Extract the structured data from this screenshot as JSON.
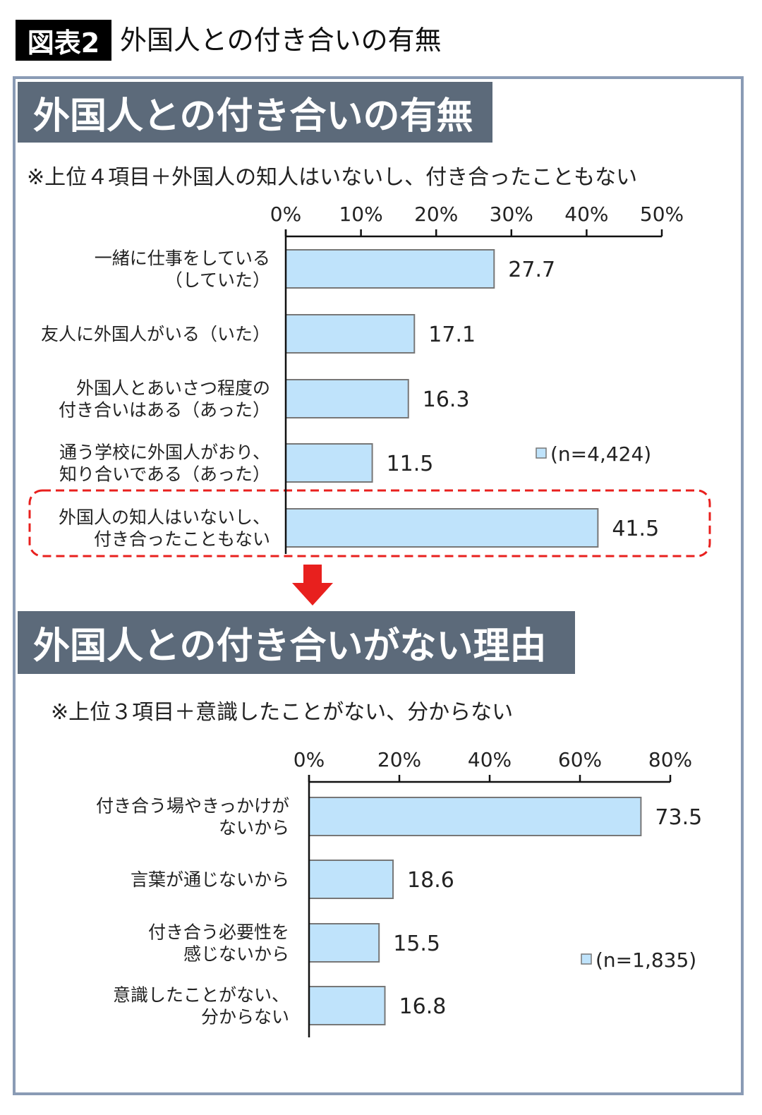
{
  "header": {
    "figure_label": "図表2",
    "title": "外国人との付き合いの有無"
  },
  "colors": {
    "bar_fill": "#bfe3fb",
    "bar_stroke": "#777777",
    "banner": "#5c6a7a",
    "frame": "#8a9bb5",
    "highlight": "#e8201e"
  },
  "chart_data": [
    {
      "type": "bar",
      "orientation": "horizontal",
      "title": "外国人との付き合いの有無",
      "note": "※上位４項目＋外国人の知人はいないし、付き合ったこともない",
      "categories": [
        [
          "一緒に仕事をしている",
          "（していた）"
        ],
        [
          "友人に外国人がいる（いた）"
        ],
        [
          "外国人とあいさつ程度の",
          "付き合いはある（あった）"
        ],
        [
          "通う学校に外国人がおり、",
          "知り合いである（あった）"
        ],
        [
          "外国人の知人はいないし、",
          "付き合ったこともない"
        ]
      ],
      "values": [
        27.7,
        17.1,
        16.3,
        11.5,
        41.5
      ],
      "value_labels": [
        "27.7",
        "17.1",
        "16.3",
        "11.5",
        "41.5"
      ],
      "xlim": [
        0,
        50
      ],
      "ticks": [
        "0%",
        "10%",
        "20%",
        "30%",
        "40%",
        "50%"
      ],
      "tick_values": [
        0,
        10,
        20,
        30,
        40,
        50
      ],
      "legend": "(n=4,424)",
      "highlighted_category_index": 4
    },
    {
      "type": "bar",
      "orientation": "horizontal",
      "title": "外国人との付き合いがない理由",
      "note": "※上位３項目＋意識したことがない、分からない",
      "categories": [
        [
          "付き合う場やきっかけが",
          "ないから"
        ],
        [
          "言葉が通じないから"
        ],
        [
          "付き合う必要性を",
          "感じないから"
        ],
        [
          "意識したことがない、",
          "分からない"
        ]
      ],
      "values": [
        73.5,
        18.6,
        15.5,
        16.8
      ],
      "value_labels": [
        "73.5",
        "18.6",
        "15.5",
        "16.8"
      ],
      "xlim": [
        0,
        80
      ],
      "ticks": [
        "0%",
        "20%",
        "40%",
        "60%",
        "80%"
      ],
      "tick_values": [
        0,
        20,
        40,
        60,
        80
      ],
      "legend": "(n=1,835)"
    }
  ]
}
